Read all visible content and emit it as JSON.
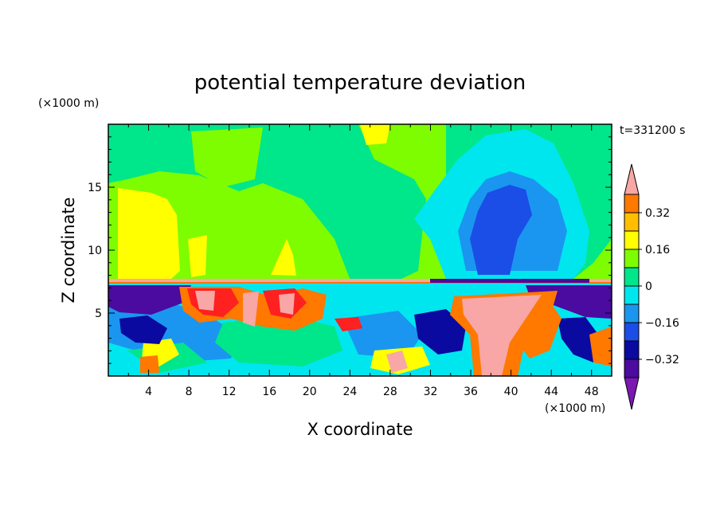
{
  "chart_data": {
    "type": "heatmap",
    "title": "potential temperature deviation",
    "xlabel": "X coordinate",
    "ylabel": "Z coordinate",
    "x_unit": "(×1000 m)",
    "y_unit": "(×1000 m)",
    "time_label": "t=331200 s",
    "xlim": [
      0,
      50
    ],
    "ylim": [
      0,
      20
    ],
    "x_ticks": [
      4,
      8,
      12,
      16,
      20,
      24,
      28,
      32,
      36,
      40,
      44,
      48
    ],
    "y_ticks": [
      5,
      10,
      15
    ],
    "colorbar": {
      "levels": [
        -0.4,
        -0.32,
        -0.24,
        -0.16,
        -0.08,
        0,
        0.08,
        0.16,
        0.24,
        0.32,
        0.4
      ],
      "colors": [
        "#7a18b0",
        "#4b0aa0",
        "#0a0aa0",
        "#1a4ee6",
        "#1a96f0",
        "#00e6ee",
        "#00e68a",
        "#7efc00",
        "#ffff00",
        "#ffbe00",
        "#ff7800",
        "#ff2020",
        "#f8a6a6"
      ],
      "labels": [
        "0.32",
        "0.16",
        "0",
        "-0.16",
        "-0.32"
      ],
      "label_values": [
        0.32,
        0.16,
        0,
        -0.16,
        -0.32
      ]
    }
  }
}
